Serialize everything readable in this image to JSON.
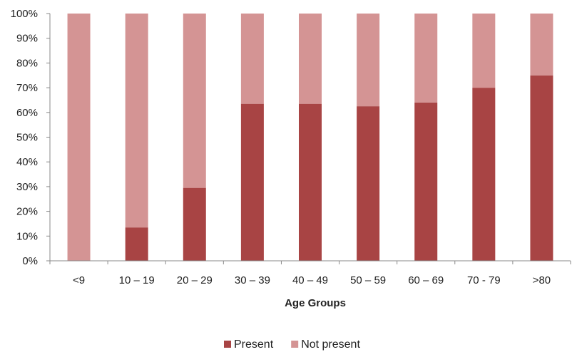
{
  "chart_data": {
    "type": "bar",
    "stacked": true,
    "percent": true,
    "title": "",
    "xlabel": "Age Groups",
    "ylabel": "",
    "ylim": [
      0,
      100
    ],
    "yticks": [
      "0%",
      "10%",
      "20%",
      "30%",
      "40%",
      "50%",
      "60%",
      "70%",
      "80%",
      "90%",
      "100%"
    ],
    "categories": [
      "<9",
      "10 – 19",
      "20 – 29",
      "30 – 39",
      "40 – 49",
      "50 – 59",
      "60 – 69",
      "70 - 79",
      ">80"
    ],
    "series": [
      {
        "name": "Present",
        "color": "#a84444",
        "values": [
          0,
          13.5,
          29.5,
          63.5,
          63.5,
          62.5,
          64,
          70,
          75
        ]
      },
      {
        "name": "Not present",
        "color": "#d49494",
        "values": [
          100,
          86.5,
          70.5,
          36.5,
          36.5,
          37.5,
          36,
          30,
          25
        ]
      }
    ],
    "grid": false,
    "legend": "bottom-center"
  }
}
